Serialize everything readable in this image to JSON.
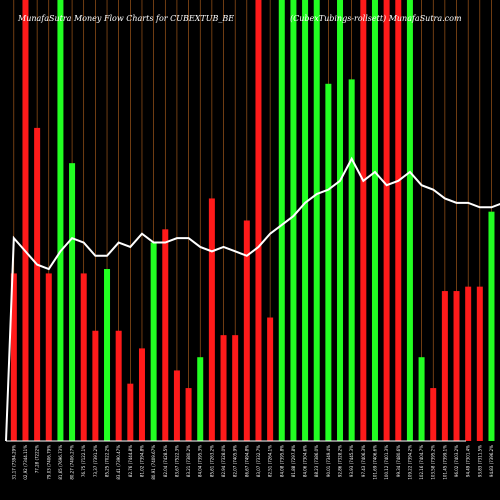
{
  "chart_data": {
    "type": "bar",
    "title": "MunafaSutra  Money Flow  Charts for CUBEXTUB_BE",
    "subtitle": "(CubexTubings-rollsett) MunafaSutra.com",
    "xlabel": "",
    "ylabel": "",
    "ylim": [
      0,
      100
    ],
    "grid": false,
    "legend": "none",
    "colors": {
      "background": "#000000",
      "up": "#22ff22",
      "down": "#ff1a1a",
      "gridline": "#b8641e",
      "line": "#ffffff",
      "baseline": "#ffffff"
    },
    "categories": [
      "31,17 (7394.29%",
      "02,92 (7344.11%",
      "77.28 (7222%",
      "79.03 (7406.79%",
      "81,65 (7696.73%",
      "80,27 (7406.27%",
      "76.75 (7122.1%",
      "73,37 (7391.2%",
      "85,25 (7022.2%",
      "83.41 (7390.47%",
      "82.76 (7444.8%",
      "81.02 (7394.8%",
      "80.91 (7409.67%",
      "82.04 (7428.5%",
      "83,67 (7522.3%",
      "83.21 (7380.2%",
      "84.04 (7395.3%",
      "85,61 (7263.2%",
      "82.94 (7328.0%",
      "82,07 (7405.9%",
      "86,67 (7494.8%",
      "83,07 (7332.7%",
      "82.51 (7264.1%",
      "84.08 (7395.8%",
      "81.88 (7297.8%",
      "84.06 (7304.6%",
      "88.23 (7386.0%",
      "90.01 (7349.4%",
      "92.86 (7328.2%",
      "93.93 (7445.3%",
      "97.43 (7406.3%",
      "101.69 (7406.6%",
      "100.12 (7401.3%",
      "99.34 (7480.6%",
      "109.22 (7394.2%",
      "102.16 (7404.7%",
      "103.58 (7395.2%",
      "101.45 (7399.1%",
      "96.02 (7403.2%",
      "94.49 (7301.4%",
      "93.83 (7311.5%",
      "94.83 (7396.2%",
      "96.77 (7349.8%",
      "97.05 (7408.1%",
      "98.54 (7333.1%",
      "99.83 (7394.3%",
      "99.12 (7404.3%",
      "96.07 (7404.6%"
    ],
    "series": [
      {
        "values": [
          38,
          100,
          71,
          38,
          100,
          63,
          38,
          25,
          39,
          25,
          13,
          21,
          45,
          48,
          16,
          12,
          19,
          55,
          24,
          24,
          50,
          100,
          28,
          100,
          100,
          100,
          100,
          81,
          100,
          82,
          100,
          100,
          100,
          100,
          100,
          19,
          12,
          34,
          34,
          35,
          35,
          52,
          1,
          34,
          24,
          100,
          100,
          8
        ],
        "directions": [
          "down",
          "down",
          "down",
          "down",
          "up",
          "up",
          "down",
          "down",
          "up",
          "down",
          "down",
          "down",
          "up",
          "down",
          "down",
          "down",
          "up",
          "down",
          "down",
          "down",
          "down",
          "down",
          "down",
          "up",
          "up",
          "up",
          "up",
          "up",
          "up",
          "up",
          "down",
          "up",
          "down",
          "down",
          "up",
          "up",
          "down",
          "down",
          "down",
          "down",
          "down",
          "up",
          "up",
          "up",
          "down",
          "down",
          "down",
          "down"
        ]
      },
      {
        "values": [
          46,
          43,
          40,
          39,
          43,
          46,
          45,
          42,
          42,
          45,
          44,
          47,
          45,
          45,
          46,
          46,
          44,
          43,
          44,
          43,
          42,
          44,
          47,
          49,
          51,
          54,
          56,
          57,
          59,
          64,
          59,
          61,
          58,
          59,
          61,
          58,
          57,
          55,
          54,
          54,
          53,
          53,
          54,
          55,
          56,
          55,
          54,
          56
        ]
      }
    ]
  }
}
